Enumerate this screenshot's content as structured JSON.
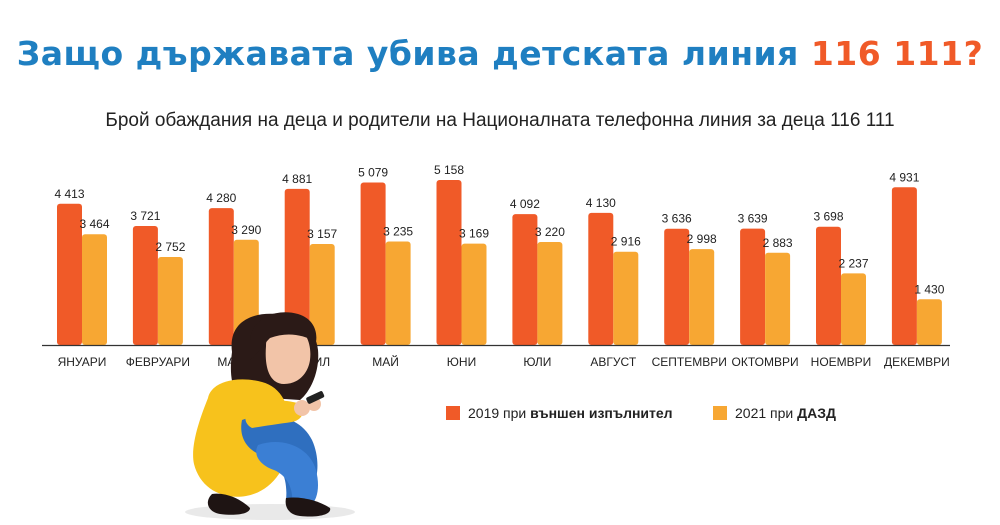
{
  "header": {
    "title_main": "Защо държавата убива детската линия",
    "title_number": "116 111?",
    "subtitle": "Брой обаждания на деца и родители на Националната телефонна линия за деца 116 111"
  },
  "colors": {
    "series_2019": "#f05a28",
    "series_2021": "#f7a733",
    "title_blue": "#1f7fc1"
  },
  "legend": {
    "s2019_prefix": "2019 при ",
    "s2019_bold": "външен изпълнител",
    "s2021_prefix": "2021 при ",
    "s2021_bold": "ДАЗД"
  },
  "chart_data": {
    "type": "bar",
    "title": "Брой обаждания на деца и родители на Националната телефонна линия за деца 116 111",
    "categories": [
      "ЯНУАРИ",
      "ФЕВРУАРИ",
      "МАРТ",
      "АПРИЛ",
      "МАЙ",
      "ЮНИ",
      "ЮЛИ",
      "АВГУСТ",
      "СЕПТЕМВРИ",
      "ОКТОМВРИ",
      "НОЕМВРИ",
      "ДЕКЕМВРИ"
    ],
    "series": [
      {
        "name": "2019 при външен изпълнител",
        "values": [
          4413,
          3721,
          4280,
          4881,
          5079,
          5158,
          4092,
          4130,
          3636,
          3639,
          3698,
          4931
        ],
        "labels": [
          "4 413",
          "3 721",
          "4 280",
          "4 881",
          "5 079",
          "5 158",
          "4 092",
          "4 130",
          "3 636",
          "3 639",
          "3 698",
          "4 931"
        ]
      },
      {
        "name": "2021 при ДАЗД",
        "values": [
          3464,
          2752,
          3290,
          3157,
          3235,
          3169,
          3220,
          2916,
          2998,
          2883,
          2237,
          1430
        ],
        "labels": [
          "3 464",
          "2 752",
          "3 290",
          "3 157",
          "3 235",
          "3 169",
          "3 220",
          "2 916",
          "2 998",
          "2 883",
          "2 237",
          "1 430"
        ]
      }
    ],
    "xlabel": "",
    "ylabel": "",
    "ylim": [
      0,
      5158
    ],
    "grid": false,
    "legend_position": "bottom-right"
  }
}
